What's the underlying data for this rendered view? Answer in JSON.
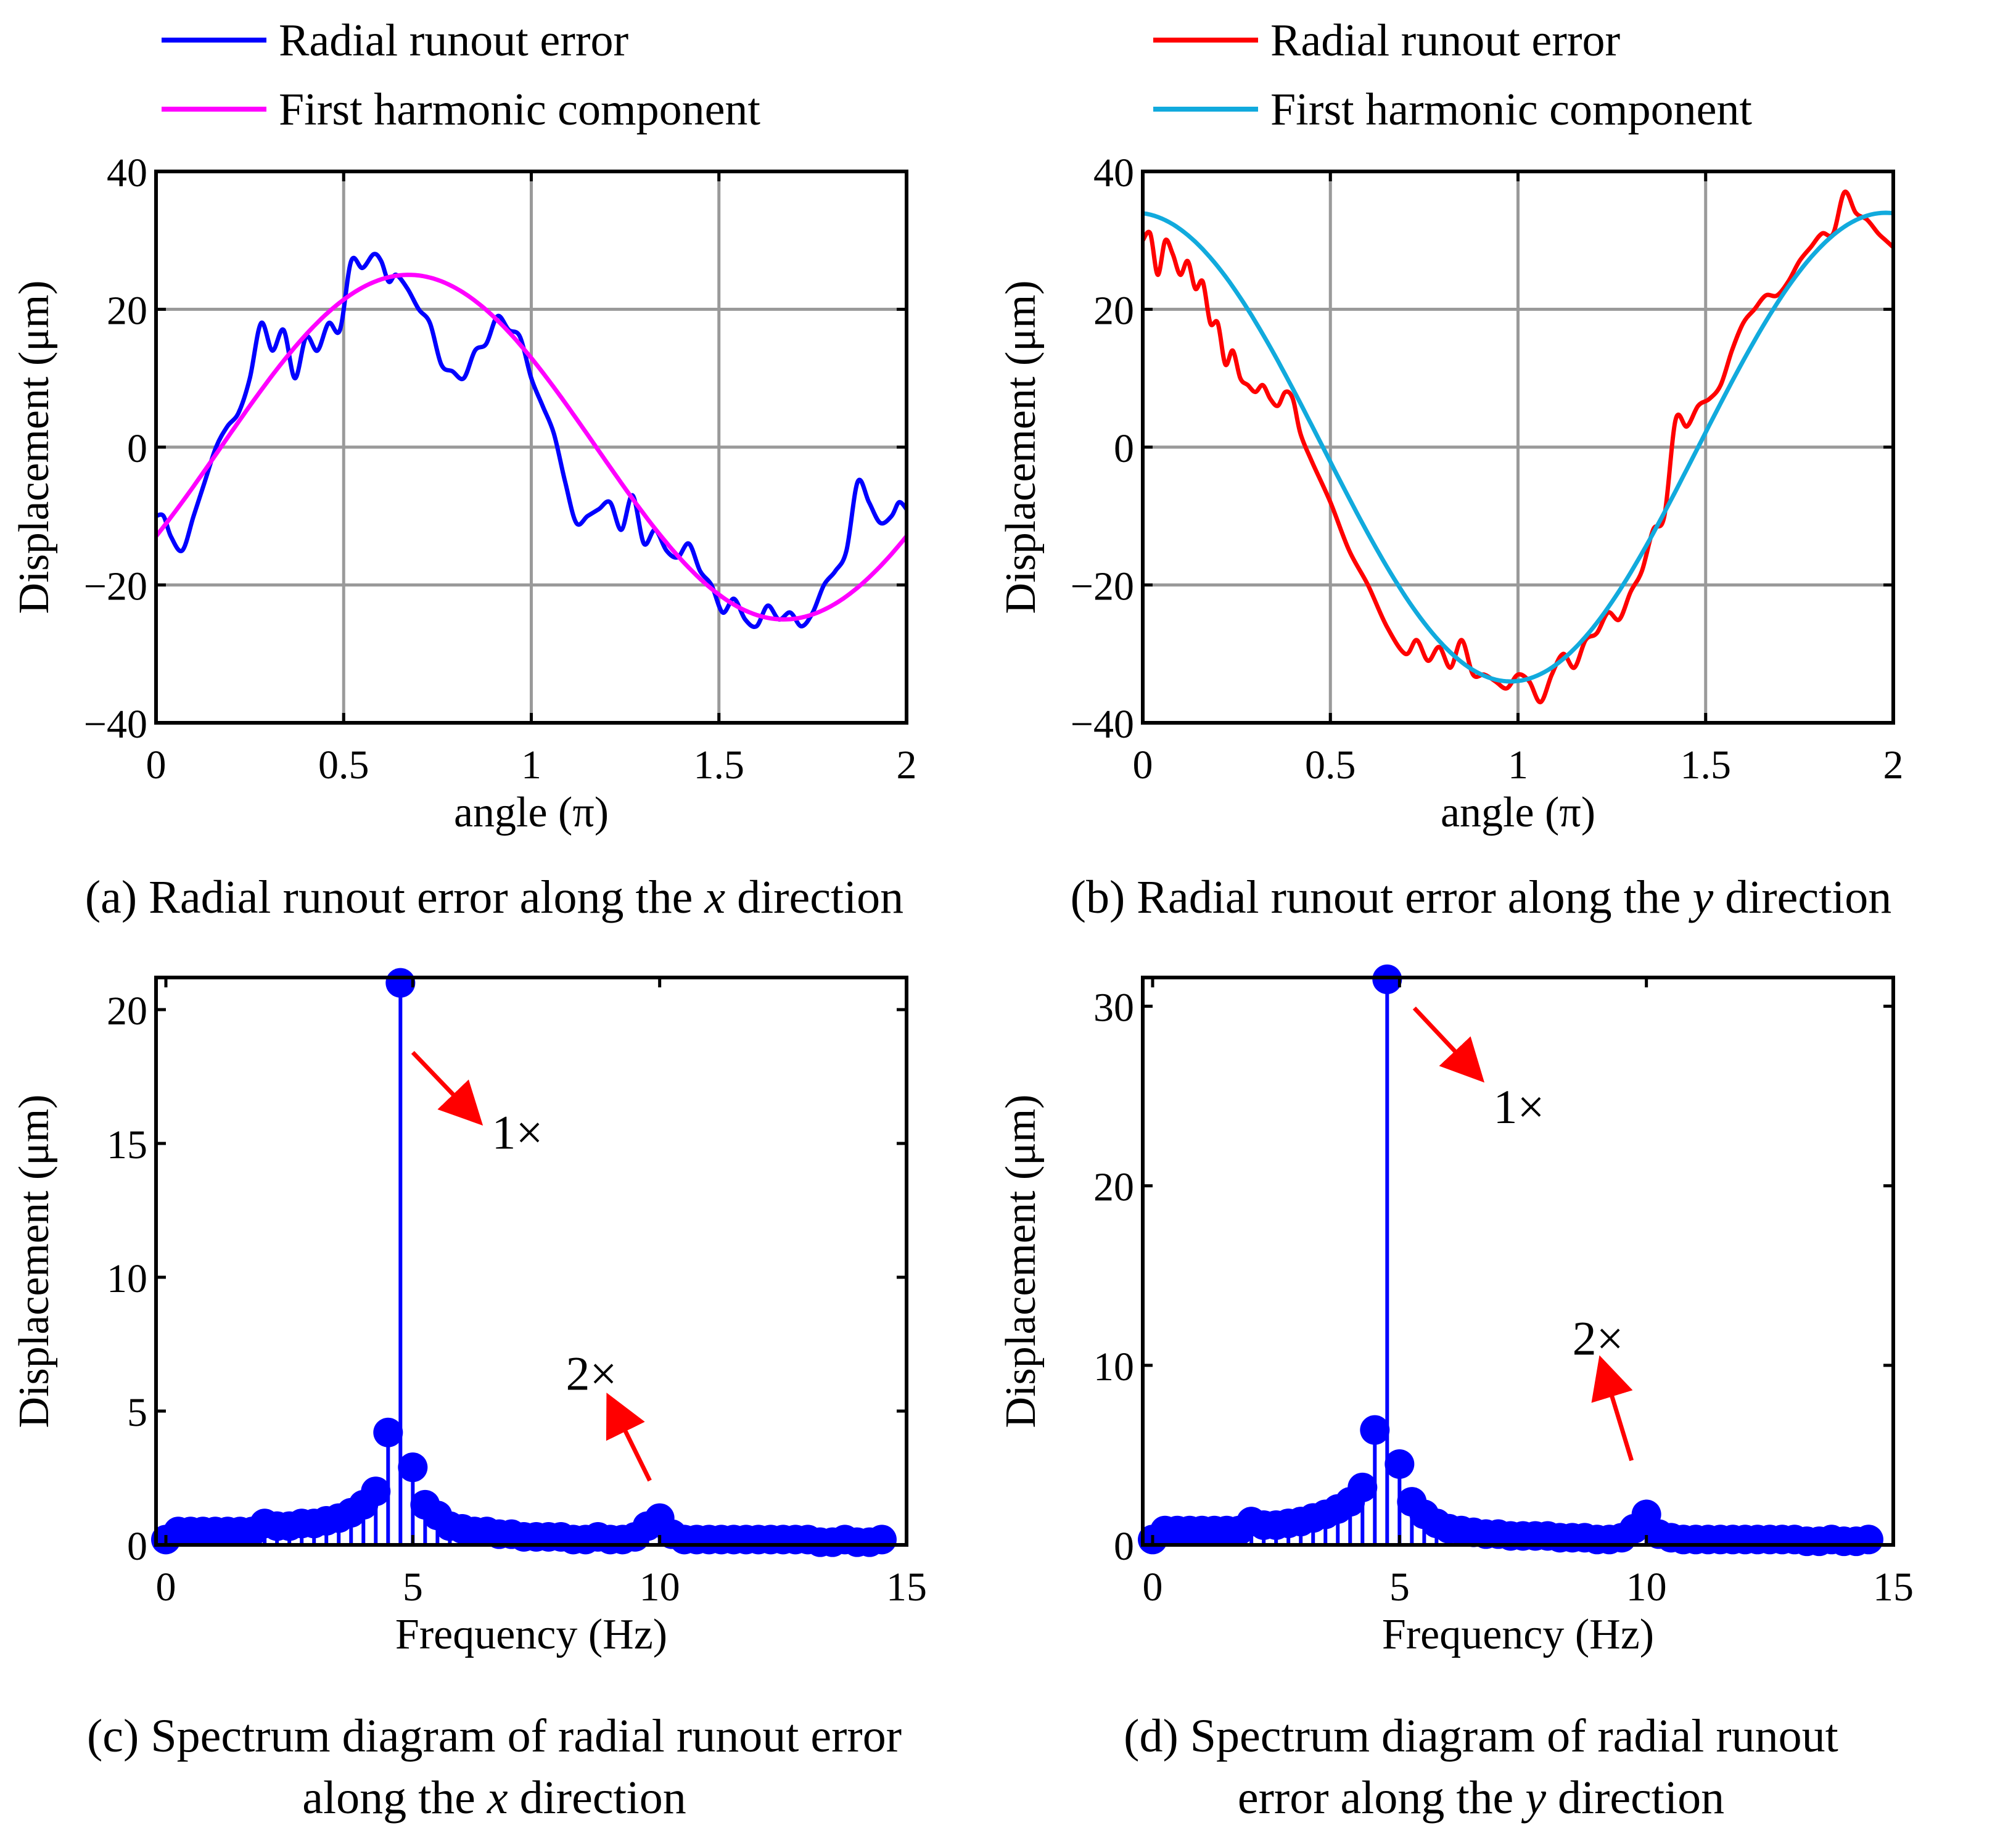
{
  "colors": {
    "blue_series": "#0000ff",
    "magenta_series": "#ff00ff",
    "red_series": "#ff0000",
    "cyan_series": "#11aadd",
    "stem": "#0000ff",
    "arrow": "#ff0000"
  },
  "chart_data": [
    {
      "id": "a",
      "type": "line",
      "xlabel": "angle (π)",
      "ylabel": "Displacement (μm)",
      "xlim": [
        0,
        2
      ],
      "ylim": [
        -40,
        40
      ],
      "xticks": [
        "0",
        "0.5",
        "1",
        "1.5",
        "2"
      ],
      "xtick_values": [
        0,
        0.5,
        1,
        1.5,
        2
      ],
      "yticks": [
        "−40",
        "−20",
        "0",
        "20",
        "40"
      ],
      "ytick_values": [
        -40,
        -20,
        0,
        20,
        40
      ],
      "grid": true,
      "caption": {
        "pre": "(a) Radial runout error along the ",
        "var": "x",
        "post": " direction"
      },
      "series": [
        {
          "name": "Radial runout error",
          "color": "#0000ff",
          "x": [
            0,
            0.02,
            0.04,
            0.07,
            0.1,
            0.13,
            0.16,
            0.19,
            0.22,
            0.25,
            0.28,
            0.31,
            0.34,
            0.37,
            0.4,
            0.43,
            0.46,
            0.49,
            0.52,
            0.55,
            0.58,
            0.6,
            0.62,
            0.64,
            0.67,
            0.7,
            0.73,
            0.76,
            0.79,
            0.82,
            0.85,
            0.88,
            0.91,
            0.94,
            0.97,
            1.0,
            1.03,
            1.06,
            1.09,
            1.12,
            1.15,
            1.18,
            1.21,
            1.24,
            1.27,
            1.3,
            1.33,
            1.36,
            1.39,
            1.42,
            1.45,
            1.48,
            1.51,
            1.54,
            1.57,
            1.6,
            1.63,
            1.66,
            1.69,
            1.72,
            1.75,
            1.78,
            1.81,
            1.84,
            1.87,
            1.9,
            1.93,
            1.96,
            1.98,
            2.0
          ],
          "y": [
            -10,
            -10,
            -13,
            -15,
            -10,
            -5,
            0,
            3,
            5,
            10,
            18,
            14,
            17,
            10,
            16,
            14,
            18,
            17,
            27,
            26,
            28,
            27,
            24,
            25,
            23,
            20,
            18,
            12,
            11,
            10,
            14,
            15,
            19,
            17,
            16,
            10,
            6,
            2,
            -5,
            -11,
            -10,
            -9,
            -8,
            -12,
            -7,
            -14,
            -12,
            -15,
            -16,
            -14,
            -18,
            -20,
            -24,
            -22,
            -25,
            -26,
            -23,
            -25,
            -24,
            -26,
            -24,
            -20,
            -18,
            -15,
            -5,
            -8,
            -11,
            -10,
            -8,
            -9
          ]
        },
        {
          "name": "First harmonic component",
          "color": "#ff00ff",
          "amplitude": 25,
          "phase_pi": 0.673,
          "form": "A*cos(pi*(x - phase))"
        }
      ]
    },
    {
      "id": "b",
      "type": "line",
      "xlabel": "angle (π)",
      "ylabel": "Displacement (μm)",
      "xlim": [
        0,
        2
      ],
      "ylim": [
        -40,
        40
      ],
      "xticks": [
        "0",
        "0.5",
        "1",
        "1.5",
        "2"
      ],
      "xtick_values": [
        0,
        0.5,
        1,
        1.5,
        2
      ],
      "yticks": [
        "−40",
        "−20",
        "0",
        "20",
        "40"
      ],
      "ytick_values": [
        -40,
        -20,
        0,
        20,
        40
      ],
      "grid": true,
      "caption": {
        "pre": "(b) Radial runout error along the ",
        "var": "y",
        "post": " direction"
      },
      "series": [
        {
          "name": "Radial runout error",
          "color": "#ff0000",
          "x": [
            0,
            0.02,
            0.04,
            0.06,
            0.08,
            0.1,
            0.12,
            0.14,
            0.16,
            0.18,
            0.2,
            0.22,
            0.24,
            0.26,
            0.28,
            0.3,
            0.32,
            0.34,
            0.36,
            0.38,
            0.4,
            0.42,
            0.45,
            0.5,
            0.55,
            0.6,
            0.65,
            0.7,
            0.73,
            0.76,
            0.79,
            0.82,
            0.85,
            0.88,
            0.91,
            0.94,
            0.97,
            1.0,
            1.03,
            1.06,
            1.09,
            1.12,
            1.15,
            1.18,
            1.21,
            1.24,
            1.27,
            1.3,
            1.33,
            1.36,
            1.39,
            1.42,
            1.45,
            1.48,
            1.51,
            1.54,
            1.57,
            1.6,
            1.63,
            1.66,
            1.69,
            1.72,
            1.75,
            1.78,
            1.81,
            1.84,
            1.87,
            1.9,
            1.93,
            1.96,
            1.98,
            2.0
          ],
          "y": [
            30,
            31,
            25,
            30,
            28,
            25,
            27,
            23,
            24,
            18,
            18,
            12,
            14,
            10,
            9,
            8,
            9,
            7,
            6,
            8,
            7,
            2,
            -2,
            -8,
            -15,
            -20,
            -26,
            -30,
            -28,
            -31,
            -29,
            -32,
            -28,
            -33,
            -33,
            -34,
            -35,
            -33,
            -34,
            -37,
            -33,
            -30,
            -32,
            -28,
            -27,
            -24,
            -25,
            -21,
            -18,
            -12,
            -10,
            4,
            3,
            6,
            7,
            9,
            14,
            18,
            20,
            22,
            22,
            24,
            27,
            29,
            31,
            31,
            37,
            34,
            33,
            31,
            30,
            29
          ]
        },
        {
          "name": "First harmonic component",
          "color": "#11aadd",
          "amplitude": 34,
          "phase_pi": 1.98,
          "form": "A*cos(pi*(x - phase))"
        }
      ]
    },
    {
      "id": "c",
      "type": "stem",
      "xlabel": "Frequency (Hz)",
      "ylabel": "Displacement (μm)",
      "xlim": [
        -0.2,
        15
      ],
      "ylim": [
        0,
        21.2
      ],
      "xticks": [
        "0",
        "5",
        "10",
        "15"
      ],
      "xtick_values": [
        0,
        5,
        10,
        15
      ],
      "yticks": [
        "0",
        "5",
        "10",
        "15",
        "20"
      ],
      "ytick_values": [
        0,
        5,
        10,
        15,
        20
      ],
      "grid": false,
      "caption": {
        "pre": "(c) Spectrum diagram of radial runout error",
        "line2_pre": "along the ",
        "var": "x",
        "post": " direction"
      },
      "x": [
        0,
        0.25,
        0.5,
        0.75,
        1.0,
        1.25,
        1.5,
        1.75,
        2.0,
        2.25,
        2.5,
        2.75,
        3.0,
        3.25,
        3.5,
        3.75,
        4.0,
        4.25,
        4.5,
        4.75,
        5.0,
        5.25,
        5.5,
        5.75,
        6.0,
        6.25,
        6.5,
        6.75,
        7.0,
        7.25,
        7.5,
        7.75,
        8.0,
        8.25,
        8.5,
        8.75,
        9.0,
        9.25,
        9.5,
        9.75,
        10.0,
        10.25,
        10.5,
        10.75,
        11.0,
        11.25,
        11.5,
        11.75,
        12.0,
        12.25,
        12.5,
        12.75,
        13.0,
        13.25,
        13.5,
        13.75,
        14.0,
        14.25,
        14.5
      ],
      "values": [
        0.2,
        0.5,
        0.5,
        0.5,
        0.5,
        0.5,
        0.5,
        0.5,
        0.8,
        0.7,
        0.7,
        0.8,
        0.8,
        0.9,
        1.0,
        1.2,
        1.5,
        2.0,
        4.2,
        21.0,
        2.9,
        1.5,
        1.1,
        0.7,
        0.6,
        0.5,
        0.5,
        0.4,
        0.4,
        0.3,
        0.3,
        0.3,
        0.3,
        0.2,
        0.2,
        0.3,
        0.2,
        0.2,
        0.3,
        0.7,
        1.0,
        0.4,
        0.2,
        0.2,
        0.2,
        0.2,
        0.2,
        0.2,
        0.2,
        0.2,
        0.2,
        0.2,
        0.2,
        0.1,
        0.1,
        0.2,
        0.1,
        0.1,
        0.2
      ],
      "annotations": [
        {
          "label": "1×",
          "tip": [
            6.3,
            15.9
          ],
          "tail": [
            5.0,
            18.4
          ],
          "text_at": [
            6.6,
            14.8
          ]
        },
        {
          "label": "2×",
          "tip": [
            9.0,
            5.4
          ],
          "tail": [
            9.8,
            2.4
          ],
          "text_at": [
            8.1,
            5.8
          ]
        }
      ]
    },
    {
      "id": "d",
      "type": "stem",
      "xlabel": "Frequency (Hz)",
      "ylabel": "Displacement (μm)",
      "xlim": [
        -0.2,
        15
      ],
      "ylim": [
        0,
        31.6
      ],
      "xticks": [
        "0",
        "5",
        "10",
        "15"
      ],
      "xtick_values": [
        0,
        5,
        10,
        15
      ],
      "yticks": [
        "0",
        "10",
        "20",
        "30"
      ],
      "ytick_values": [
        0,
        10,
        20,
        30
      ],
      "grid": false,
      "caption": {
        "pre": "(d) Spectrum diagram of radial runout",
        "line2_pre": "error along the ",
        "var": "y",
        "post": " direction"
      },
      "x": [
        0,
        0.25,
        0.5,
        0.75,
        1.0,
        1.25,
        1.5,
        1.75,
        2.0,
        2.25,
        2.5,
        2.75,
        3.0,
        3.25,
        3.5,
        3.75,
        4.0,
        4.25,
        4.5,
        4.75,
        5.0,
        5.25,
        5.5,
        5.75,
        6.0,
        6.25,
        6.5,
        6.75,
        7.0,
        7.25,
        7.5,
        7.75,
        8.0,
        8.25,
        8.5,
        8.75,
        9.0,
        9.25,
        9.5,
        9.75,
        10.0,
        10.25,
        10.5,
        10.75,
        11.0,
        11.25,
        11.5,
        11.75,
        12.0,
        12.25,
        12.5,
        12.75,
        13.0,
        13.25,
        13.5,
        13.75,
        14.0,
        14.25,
        14.5
      ],
      "values": [
        0.3,
        0.8,
        0.8,
        0.8,
        0.8,
        0.8,
        0.8,
        0.8,
        1.3,
        1.1,
        1.1,
        1.2,
        1.3,
        1.5,
        1.7,
        2.0,
        2.4,
        3.2,
        6.4,
        31.5,
        4.5,
        2.4,
        1.7,
        1.2,
        0.9,
        0.8,
        0.7,
        0.6,
        0.6,
        0.5,
        0.5,
        0.5,
        0.5,
        0.4,
        0.4,
        0.4,
        0.3,
        0.3,
        0.4,
        0.9,
        1.7,
        0.6,
        0.4,
        0.3,
        0.3,
        0.3,
        0.3,
        0.3,
        0.3,
        0.3,
        0.3,
        0.3,
        0.3,
        0.2,
        0.2,
        0.3,
        0.2,
        0.2,
        0.3
      ],
      "annotations": [
        {
          "label": "1×",
          "tip": [
            6.6,
            26.1
          ],
          "tail": [
            5.3,
            29.9
          ],
          "text_at": [
            6.9,
            23.5
          ]
        },
        {
          "label": "2×",
          "tip": [
            9.1,
            10.1
          ],
          "tail": [
            9.7,
            4.7
          ],
          "text_at": [
            8.5,
            10.6
          ]
        }
      ]
    }
  ]
}
